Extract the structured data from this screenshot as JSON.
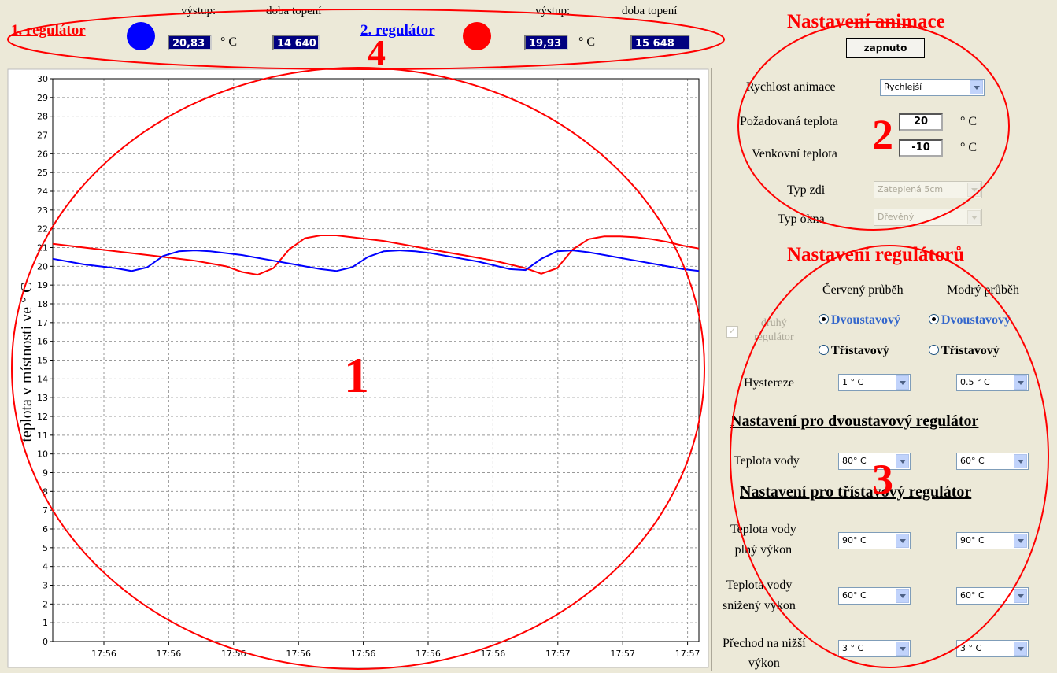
{
  "header": {
    "regulator1": {
      "name": "1. regulátor",
      "output_label": "výstup:",
      "output": "20,83",
      "unit": "° C",
      "time_label": "doba topení",
      "time": "14 640"
    },
    "regulator2": {
      "name": "2. regulátor",
      "output_label": "výstup:",
      "output": "19,93",
      "unit": "° C",
      "time_label": "doba topení",
      "time": "15 648"
    }
  },
  "chart_data": {
    "type": "line",
    "ylabel": "teplota v místnosti ve ° C",
    "xtick_labels": [
      "17:56",
      "17:56",
      "17:56",
      "17:56",
      "17:56",
      "17:56",
      "17:56",
      "17:57",
      "17:57",
      "17:57"
    ],
    "ylim": [
      0,
      30
    ],
    "yticks": [
      0,
      1,
      2,
      3,
      4,
      5,
      6,
      7,
      8,
      9,
      10,
      11,
      12,
      13,
      14,
      15,
      16,
      17,
      18,
      19,
      20,
      21,
      22,
      23,
      24,
      25,
      26,
      27,
      28,
      29,
      30
    ],
    "grid": true,
    "series": [
      {
        "color": "#ff0000",
        "values": [
          21.2,
          21.1,
          21.0,
          20.9,
          20.8,
          20.7,
          20.6,
          20.5,
          20.4,
          20.3,
          20.15,
          20.0,
          19.7,
          19.55,
          19.9,
          20.9,
          21.5,
          21.65,
          21.65,
          21.55,
          21.45,
          21.35,
          21.2,
          21.05,
          20.9,
          20.75,
          20.6,
          20.45,
          20.3,
          20.1,
          19.9,
          19.6,
          19.9,
          20.9,
          21.45,
          21.6,
          21.6,
          21.55,
          21.45,
          21.3,
          21.1,
          20.95
        ]
      },
      {
        "color": "#0000ff",
        "values": [
          20.4,
          20.25,
          20.1,
          20.0,
          19.9,
          19.75,
          19.95,
          20.55,
          20.8,
          20.85,
          20.8,
          20.7,
          20.6,
          20.45,
          20.3,
          20.15,
          20.0,
          19.85,
          19.75,
          19.95,
          20.5,
          20.8,
          20.85,
          20.8,
          20.7,
          20.55,
          20.4,
          20.25,
          20.05,
          19.85,
          19.8,
          20.4,
          20.8,
          20.85,
          20.75,
          20.6,
          20.45,
          20.3,
          20.15,
          20.0,
          19.85,
          19.75
        ]
      }
    ]
  },
  "animation": {
    "title": "Nastavení animace",
    "button": "zapnuto",
    "speed_label": "Rychlost animace",
    "speed": "Rychlejší",
    "target_label": "Požadovaná teplota",
    "target": "20",
    "target_unit": "° C",
    "outside_label": "Venkovní teplota",
    "outside": "-10",
    "outside_unit": "° C",
    "wall_label": "Typ zdi",
    "wall": "Zateplená 5cm",
    "window_label": "Typ okna",
    "window": "Dřevěný"
  },
  "regulators": {
    "title": "Nastavení regulátorů",
    "second_line1": "druhý",
    "second_line2": "regulátor",
    "red_header": "Červený průběh",
    "blue_header": "Modrý průběh",
    "mode_two": "Dvoustavový",
    "mode_three": "Třístavový",
    "hysteresis_label": "Hystereze",
    "hysteresis_red": "1 ° C",
    "hysteresis_blue": "0.5 ° C",
    "two_state_title": "Nastavení pro dvoustavový regulátor",
    "water_label": "Teplota vody",
    "water_red": "80° C",
    "water_blue": "60° C",
    "three_state_title": "Nastavení pro třístavový regulátor",
    "full_label1": "Teplota vody",
    "full_label2": "plný výkon",
    "full_red": "90° C",
    "full_blue": "90° C",
    "reduced_label1": "Teplota vody",
    "reduced_label2": "snížený výkon",
    "reduced_red": "60° C",
    "reduced_blue": "60° C",
    "switch_label1": "Přechod na nižší",
    "switch_label2": "výkon",
    "switch_red": "3 ° C",
    "switch_blue": "3 ° C"
  },
  "annotations": [
    "1",
    "2",
    "3",
    "4"
  ]
}
